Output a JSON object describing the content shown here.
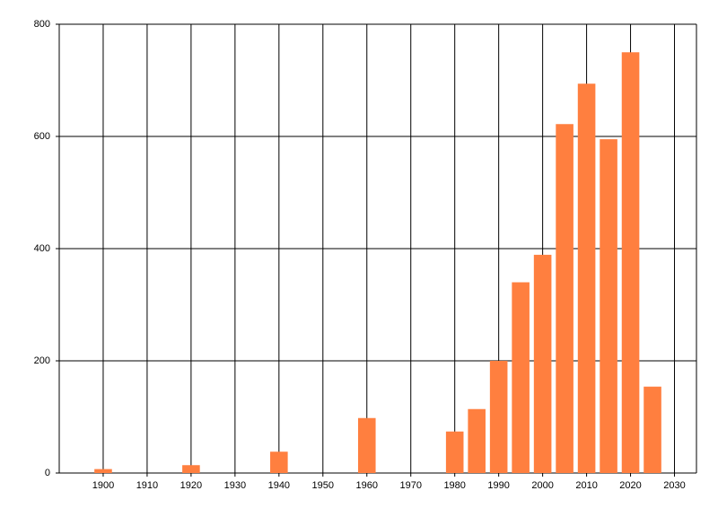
{
  "chart_data": {
    "type": "bar",
    "x": [
      1900,
      1920,
      1940,
      1960,
      1980,
      1985,
      1990,
      1995,
      2000,
      2005,
      2010,
      2015,
      2020,
      2025
    ],
    "values": [
      7,
      14,
      38,
      98,
      74,
      114,
      200,
      340,
      389,
      622,
      694,
      595,
      750,
      154
    ],
    "color": "#ff7f3f",
    "xlim": [
      1890,
      2035
    ],
    "xticks": [
      1900,
      1910,
      1920,
      1930,
      1940,
      1950,
      1960,
      1970,
      1980,
      1990,
      2000,
      2010,
      2020,
      2030
    ],
    "ylim": [
      0,
      800
    ],
    "yticks": [
      0,
      200,
      400,
      600,
      800
    ],
    "grid": true
  }
}
